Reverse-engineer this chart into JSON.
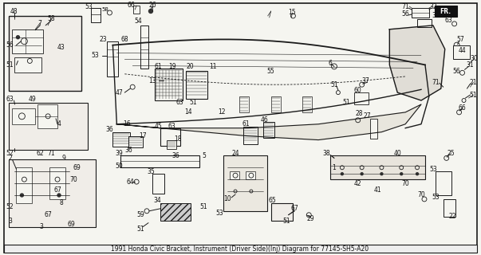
{
  "title": "1991 Honda Civic Bracket, Instrument (Driver Side)(Inj) Diagram for 77145-SH5-A20",
  "background_color": "#ffffff",
  "border_color": "#000000",
  "fig_width": 6.03,
  "fig_height": 3.2,
  "dpi": 100,
  "image_b64": ""
}
